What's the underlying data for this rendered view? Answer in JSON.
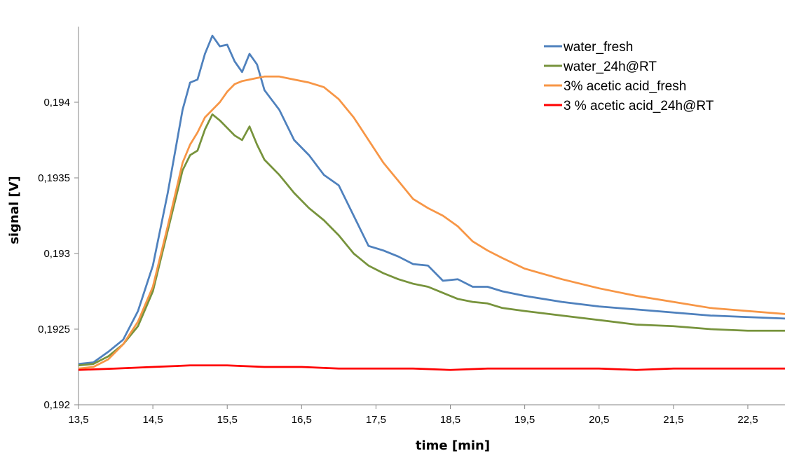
{
  "chart_data": {
    "type": "line",
    "title": "",
    "xlabel": "time [min]",
    "ylabel": "signal [V]",
    "xlim": [
      13.5,
      23
    ],
    "ylim": [
      0.192,
      0.1945
    ],
    "x_ticks": [
      13.5,
      14.5,
      15.5,
      16.5,
      17.5,
      18.5,
      19.5,
      20.5,
      21.5,
      22.5
    ],
    "x_tick_labels": [
      "13,5",
      "14,5",
      "15,5",
      "16,5",
      "17,5",
      "18,5",
      "19,5",
      "20,5",
      "21,5",
      "22,5"
    ],
    "y_ticks": [
      0.192,
      0.1925,
      0.193,
      0.1935,
      0.194
    ],
    "y_tick_labels": [
      "0,192",
      "0,1925",
      "0,193",
      "0,1935",
      "0,194"
    ],
    "grid": false,
    "legend_position": "top-right",
    "series": [
      {
        "name": "water_fresh",
        "color": "#4f81bd",
        "x": [
          13.5,
          13.7,
          13.9,
          14.1,
          14.3,
          14.5,
          14.7,
          14.9,
          15.0,
          15.1,
          15.2,
          15.3,
          15.4,
          15.5,
          15.6,
          15.7,
          15.8,
          15.9,
          16.0,
          16.2,
          16.4,
          16.6,
          16.8,
          17.0,
          17.2,
          17.4,
          17.6,
          17.8,
          18.0,
          18.2,
          18.4,
          18.6,
          18.8,
          19.0,
          19.2,
          19.5,
          20.0,
          20.5,
          21.0,
          21.5,
          22.0,
          22.5,
          23.0
        ],
        "y": [
          0.19227,
          0.19228,
          0.19235,
          0.19243,
          0.19262,
          0.19292,
          0.1934,
          0.19395,
          0.19413,
          0.19415,
          0.19432,
          0.19444,
          0.19437,
          0.19438,
          0.19427,
          0.1942,
          0.19432,
          0.19425,
          0.19408,
          0.19395,
          0.19375,
          0.19365,
          0.19352,
          0.19345,
          0.19325,
          0.19305,
          0.19302,
          0.19298,
          0.19293,
          0.19292,
          0.19282,
          0.19283,
          0.19278,
          0.19278,
          0.19275,
          0.19272,
          0.19268,
          0.19265,
          0.19263,
          0.19261,
          0.19259,
          0.19258,
          0.19257
        ]
      },
      {
        "name": "water_24h@RT",
        "color": "#77933c",
        "x": [
          13.5,
          13.7,
          13.9,
          14.1,
          14.3,
          14.5,
          14.7,
          14.9,
          15.0,
          15.1,
          15.2,
          15.3,
          15.4,
          15.5,
          15.6,
          15.7,
          15.8,
          15.9,
          16.0,
          16.2,
          16.4,
          16.6,
          16.8,
          17.0,
          17.2,
          17.4,
          17.6,
          17.8,
          18.0,
          18.2,
          18.4,
          18.6,
          18.8,
          19.0,
          19.2,
          19.5,
          20.0,
          20.5,
          21.0,
          21.5,
          22.0,
          22.5,
          23.0
        ],
        "y": [
          0.19226,
          0.19227,
          0.19232,
          0.1924,
          0.19252,
          0.19275,
          0.19315,
          0.19355,
          0.19365,
          0.19368,
          0.19382,
          0.19392,
          0.19388,
          0.19383,
          0.19378,
          0.19375,
          0.19384,
          0.19372,
          0.19362,
          0.19352,
          0.1934,
          0.1933,
          0.19322,
          0.19312,
          0.193,
          0.19292,
          0.19287,
          0.19283,
          0.1928,
          0.19278,
          0.19274,
          0.1927,
          0.19268,
          0.19267,
          0.19264,
          0.19262,
          0.19259,
          0.19256,
          0.19253,
          0.19252,
          0.1925,
          0.19249,
          0.19249
        ]
      },
      {
        "name": "3% acetic acid_fresh",
        "color": "#f79646",
        "x": [
          13.5,
          13.7,
          13.9,
          14.1,
          14.3,
          14.5,
          14.7,
          14.9,
          15.0,
          15.1,
          15.2,
          15.3,
          15.4,
          15.5,
          15.6,
          15.7,
          15.8,
          15.9,
          16.0,
          16.2,
          16.4,
          16.6,
          16.8,
          17.0,
          17.2,
          17.4,
          17.6,
          17.8,
          18.0,
          18.2,
          18.4,
          18.6,
          18.8,
          19.0,
          19.2,
          19.5,
          20.0,
          20.5,
          21.0,
          21.5,
          22.0,
          22.5,
          23.0
        ],
        "y": [
          0.19224,
          0.19225,
          0.1923,
          0.1924,
          0.19255,
          0.19278,
          0.19318,
          0.1936,
          0.19372,
          0.1938,
          0.1939,
          0.19395,
          0.194,
          0.19407,
          0.19412,
          0.19414,
          0.19415,
          0.19416,
          0.19417,
          0.19417,
          0.19415,
          0.19413,
          0.1941,
          0.19402,
          0.1939,
          0.19375,
          0.1936,
          0.19348,
          0.19336,
          0.1933,
          0.19325,
          0.19318,
          0.19308,
          0.19302,
          0.19297,
          0.1929,
          0.19283,
          0.19277,
          0.19272,
          0.19268,
          0.19264,
          0.19262,
          0.1926
        ]
      },
      {
        "name": "3 % acetic acid_24h@RT",
        "color": "#ff0000",
        "x": [
          13.5,
          14.0,
          14.5,
          15.0,
          15.5,
          16.0,
          16.5,
          17.0,
          17.5,
          18.0,
          18.5,
          19.0,
          19.5,
          20.0,
          20.5,
          21.0,
          21.5,
          22.0,
          22.5,
          23.0
        ],
        "y": [
          0.19223,
          0.19224,
          0.19225,
          0.19226,
          0.19226,
          0.19225,
          0.19225,
          0.19224,
          0.19224,
          0.19224,
          0.19223,
          0.19224,
          0.19224,
          0.19224,
          0.19224,
          0.19223,
          0.19224,
          0.19224,
          0.19224,
          0.19224
        ]
      }
    ]
  }
}
